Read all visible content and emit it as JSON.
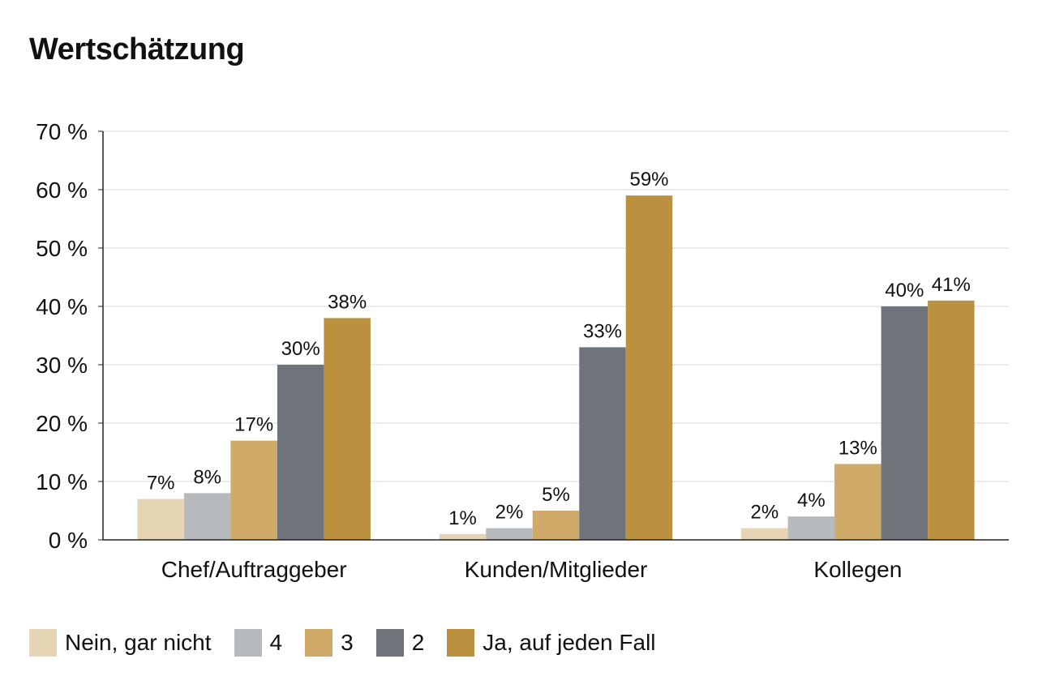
{
  "chart_data": {
    "type": "bar",
    "title": "Wertschätzung",
    "categories": [
      "Chef/Auftraggeber",
      "Kunden/Mitglieder",
      "Kollegen"
    ],
    "series": [
      {
        "name": "Nein, gar nicht",
        "color": "#e6d5b4",
        "values": [
          7,
          1,
          2
        ],
        "labels": [
          "7%",
          "1%",
          "2%"
        ]
      },
      {
        "name": "4",
        "color": "#b6babd",
        "values": [
          8,
          2,
          4
        ],
        "labels": [
          "8%",
          "2%",
          "4%"
        ]
      },
      {
        "name": "3",
        "color": "#cfaa69",
        "values": [
          17,
          5,
          13
        ],
        "labels": [
          "17%",
          "5%",
          "13%"
        ]
      },
      {
        "name": "2",
        "color": "#6e747a",
        "values": [
          30,
          33,
          40
        ],
        "labels": [
          "30%",
          "33%",
          "40%"
        ]
      },
      {
        "name": "Ja, auf jeden Fall",
        "color": "#bb913f",
        "values": [
          38,
          59,
          41
        ],
        "labels": [
          "38%",
          "59%",
          "41%"
        ]
      }
    ],
    "yticks": [
      "0 %",
      "10 %",
      "20 %",
      "30 %",
      "40 %",
      "50 %",
      "60 %",
      "70 %"
    ],
    "ylim": [
      0,
      70
    ],
    "grid": true,
    "legend_position": "bottom"
  }
}
